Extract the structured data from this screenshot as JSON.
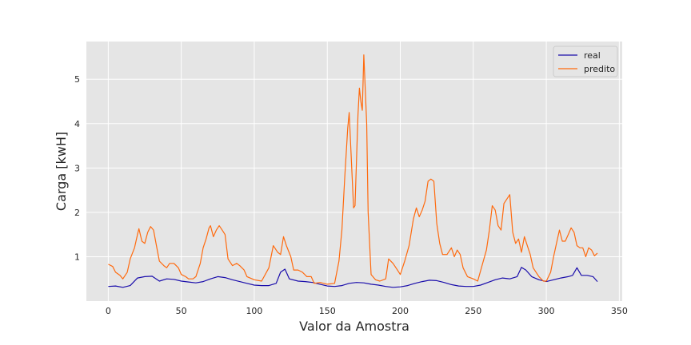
{
  "chart_data": {
    "type": "line",
    "title": "",
    "xlabel": "Valor da Amostra",
    "ylabel": "Carga [kwH]",
    "xlim": [
      -15,
      352
    ],
    "ylim": [
      0.0,
      5.85
    ],
    "xticks": [
      0,
      50,
      100,
      150,
      200,
      250,
      300,
      350
    ],
    "yticks": [
      1,
      2,
      3,
      4,
      5
    ],
    "grid": true,
    "legend_position": "top-right",
    "background_color": "#e5e5e5",
    "series": [
      {
        "name": "real",
        "color": "#1a0dab",
        "points": [
          [
            0,
            0.33
          ],
          [
            5,
            0.34
          ],
          [
            10,
            0.31
          ],
          [
            15,
            0.35
          ],
          [
            20,
            0.52
          ],
          [
            25,
            0.55
          ],
          [
            30,
            0.56
          ],
          [
            35,
            0.45
          ],
          [
            40,
            0.5
          ],
          [
            45,
            0.49
          ],
          [
            50,
            0.45
          ],
          [
            55,
            0.43
          ],
          [
            60,
            0.41
          ],
          [
            65,
            0.44
          ],
          [
            70,
            0.5
          ],
          [
            75,
            0.55
          ],
          [
            80,
            0.53
          ],
          [
            85,
            0.48
          ],
          [
            90,
            0.44
          ],
          [
            95,
            0.4
          ],
          [
            100,
            0.36
          ],
          [
            105,
            0.35
          ],
          [
            110,
            0.35
          ],
          [
            115,
            0.4
          ],
          [
            118,
            0.65
          ],
          [
            121,
            0.72
          ],
          [
            124,
            0.5
          ],
          [
            130,
            0.45
          ],
          [
            135,
            0.44
          ],
          [
            140,
            0.42
          ],
          [
            145,
            0.38
          ],
          [
            150,
            0.34
          ],
          [
            155,
            0.33
          ],
          [
            160,
            0.35
          ],
          [
            165,
            0.4
          ],
          [
            170,
            0.42
          ],
          [
            175,
            0.41
          ],
          [
            180,
            0.38
          ],
          [
            185,
            0.36
          ],
          [
            190,
            0.33
          ],
          [
            195,
            0.31
          ],
          [
            200,
            0.32
          ],
          [
            205,
            0.35
          ],
          [
            210,
            0.4
          ],
          [
            215,
            0.44
          ],
          [
            220,
            0.47
          ],
          [
            225,
            0.46
          ],
          [
            230,
            0.42
          ],
          [
            235,
            0.37
          ],
          [
            240,
            0.34
          ],
          [
            245,
            0.33
          ],
          [
            250,
            0.33
          ],
          [
            255,
            0.36
          ],
          [
            260,
            0.42
          ],
          [
            265,
            0.48
          ],
          [
            270,
            0.52
          ],
          [
            275,
            0.5
          ],
          [
            280,
            0.55
          ],
          [
            283,
            0.76
          ],
          [
            286,
            0.7
          ],
          [
            290,
            0.55
          ],
          [
            295,
            0.48
          ],
          [
            300,
            0.44
          ],
          [
            305,
            0.48
          ],
          [
            310,
            0.52
          ],
          [
            315,
            0.55
          ],
          [
            318,
            0.58
          ],
          [
            321,
            0.75
          ],
          [
            324,
            0.58
          ],
          [
            328,
            0.58
          ],
          [
            332,
            0.55
          ],
          [
            335,
            0.44
          ]
        ]
      },
      {
        "name": "predito",
        "color": "#ff6a0e",
        "points": [
          [
            0,
            0.83
          ],
          [
            3,
            0.78
          ],
          [
            5,
            0.65
          ],
          [
            8,
            0.58
          ],
          [
            10,
            0.5
          ],
          [
            13,
            0.65
          ],
          [
            15,
            0.95
          ],
          [
            18,
            1.2
          ],
          [
            20,
            1.5
          ],
          [
            21,
            1.63
          ],
          [
            23,
            1.35
          ],
          [
            25,
            1.3
          ],
          [
            27,
            1.55
          ],
          [
            29,
            1.68
          ],
          [
            31,
            1.6
          ],
          [
            33,
            1.25
          ],
          [
            35,
            0.9
          ],
          [
            38,
            0.8
          ],
          [
            40,
            0.75
          ],
          [
            42,
            0.85
          ],
          [
            45,
            0.85
          ],
          [
            48,
            0.75
          ],
          [
            50,
            0.6
          ],
          [
            53,
            0.55
          ],
          [
            55,
            0.5
          ],
          [
            58,
            0.5
          ],
          [
            60,
            0.55
          ],
          [
            63,
            0.85
          ],
          [
            65,
            1.2
          ],
          [
            67,
            1.4
          ],
          [
            69,
            1.65
          ],
          [
            70,
            1.7
          ],
          [
            72,
            1.45
          ],
          [
            74,
            1.6
          ],
          [
            76,
            1.7
          ],
          [
            78,
            1.6
          ],
          [
            80,
            1.5
          ],
          [
            82,
            0.95
          ],
          [
            85,
            0.8
          ],
          [
            88,
            0.85
          ],
          [
            90,
            0.8
          ],
          [
            93,
            0.7
          ],
          [
            95,
            0.55
          ],
          [
            100,
            0.48
          ],
          [
            105,
            0.45
          ],
          [
            110,
            0.75
          ],
          [
            113,
            1.25
          ],
          [
            116,
            1.1
          ],
          [
            118,
            1.05
          ],
          [
            120,
            1.45
          ],
          [
            122,
            1.25
          ],
          [
            125,
            1.0
          ],
          [
            127,
            0.7
          ],
          [
            130,
            0.7
          ],
          [
            133,
            0.65
          ],
          [
            136,
            0.55
          ],
          [
            139,
            0.55
          ],
          [
            141,
            0.4
          ],
          [
            145,
            0.42
          ],
          [
            150,
            0.38
          ],
          [
            155,
            0.4
          ],
          [
            158,
            0.9
          ],
          [
            160,
            1.6
          ],
          [
            162,
            2.8
          ],
          [
            164,
            3.9
          ],
          [
            165,
            4.25
          ],
          [
            167,
            2.8
          ],
          [
            168,
            2.1
          ],
          [
            169,
            2.15
          ],
          [
            171,
            4.2
          ],
          [
            172,
            4.8
          ],
          [
            173,
            4.5
          ],
          [
            174,
            4.3
          ],
          [
            175,
            5.55
          ],
          [
            177,
            4.0
          ],
          [
            178,
            2.0
          ],
          [
            180,
            0.6
          ],
          [
            183,
            0.48
          ],
          [
            186,
            0.45
          ],
          [
            190,
            0.5
          ],
          [
            192,
            0.95
          ],
          [
            195,
            0.85
          ],
          [
            198,
            0.7
          ],
          [
            200,
            0.6
          ],
          [
            203,
            0.9
          ],
          [
            206,
            1.25
          ],
          [
            209,
            1.85
          ],
          [
            211,
            2.1
          ],
          [
            213,
            1.9
          ],
          [
            215,
            2.05
          ],
          [
            217,
            2.25
          ],
          [
            219,
            2.7
          ],
          [
            221,
            2.75
          ],
          [
            223,
            2.7
          ],
          [
            225,
            1.75
          ],
          [
            227,
            1.3
          ],
          [
            229,
            1.05
          ],
          [
            232,
            1.05
          ],
          [
            235,
            1.2
          ],
          [
            237,
            1.0
          ],
          [
            239,
            1.15
          ],
          [
            241,
            1.05
          ],
          [
            243,
            0.75
          ],
          [
            246,
            0.55
          ],
          [
            250,
            0.5
          ],
          [
            253,
            0.45
          ],
          [
            256,
            0.8
          ],
          [
            259,
            1.15
          ],
          [
            261,
            1.6
          ],
          [
            263,
            2.15
          ],
          [
            265,
            2.05
          ],
          [
            267,
            1.7
          ],
          [
            269,
            1.6
          ],
          [
            271,
            2.2
          ],
          [
            273,
            2.3
          ],
          [
            275,
            2.4
          ],
          [
            277,
            1.55
          ],
          [
            279,
            1.3
          ],
          [
            281,
            1.4
          ],
          [
            283,
            1.1
          ],
          [
            285,
            1.45
          ],
          [
            287,
            1.25
          ],
          [
            289,
            1.05
          ],
          [
            291,
            0.75
          ],
          [
            295,
            0.55
          ],
          [
            298,
            0.45
          ],
          [
            300,
            0.45
          ],
          [
            303,
            0.65
          ],
          [
            305,
            1.0
          ],
          [
            307,
            1.3
          ],
          [
            309,
            1.6
          ],
          [
            311,
            1.35
          ],
          [
            313,
            1.35
          ],
          [
            315,
            1.5
          ],
          [
            317,
            1.65
          ],
          [
            319,
            1.55
          ],
          [
            321,
            1.25
          ],
          [
            323,
            1.2
          ],
          [
            325,
            1.2
          ],
          [
            327,
            1.0
          ],
          [
            329,
            1.2
          ],
          [
            331,
            1.15
          ],
          [
            333,
            1.02
          ],
          [
            335,
            1.08
          ]
        ]
      }
    ]
  }
}
